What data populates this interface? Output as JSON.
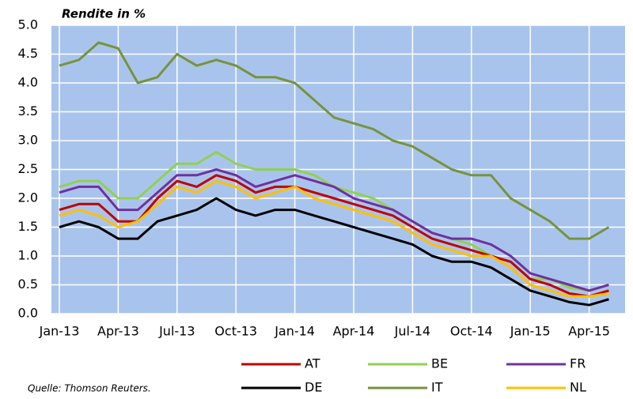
{
  "chart_data": {
    "type": "line",
    "y_label": "Rendite in %",
    "source": "Quelle: Thomson Reuters.",
    "categories": [
      "Jan-13",
      null,
      null,
      "Apr-13",
      null,
      null,
      "Jul-13",
      null,
      null,
      "Oct-13",
      null,
      null,
      "Jan-14",
      null,
      null,
      "Apr-14",
      null,
      null,
      "Jul-14",
      null,
      null,
      "Oct-14",
      null,
      null,
      "Jan-15",
      null,
      null,
      "Apr-15",
      null
    ],
    "series": [
      {
        "name": "AT",
        "color": "#c00000",
        "values": [
          1.8,
          1.9,
          1.9,
          1.6,
          1.6,
          2.0,
          2.3,
          2.2,
          2.4,
          2.3,
          2.1,
          2.2,
          2.2,
          2.1,
          2.0,
          1.9,
          1.8,
          1.7,
          1.5,
          1.3,
          1.2,
          1.1,
          1.0,
          0.9,
          0.6,
          0.5,
          0.35,
          0.3,
          0.4
        ]
      },
      {
        "name": "BE",
        "color": "#92d050",
        "values": [
          2.2,
          2.3,
          2.3,
          2.0,
          2.0,
          2.3,
          2.6,
          2.6,
          2.8,
          2.6,
          2.5,
          2.5,
          2.5,
          2.4,
          2.2,
          2.1,
          2.0,
          1.8,
          1.6,
          1.4,
          1.3,
          1.2,
          1.0,
          0.9,
          0.6,
          0.6,
          0.45,
          0.4,
          0.5
        ]
      },
      {
        "name": "FR",
        "color": "#7030a0",
        "values": [
          2.1,
          2.2,
          2.2,
          1.8,
          1.8,
          2.1,
          2.4,
          2.4,
          2.5,
          2.4,
          2.2,
          2.3,
          2.4,
          2.3,
          2.2,
          2.0,
          1.9,
          1.8,
          1.6,
          1.4,
          1.3,
          1.3,
          1.2,
          1.0,
          0.7,
          0.6,
          0.5,
          0.4,
          0.5
        ]
      },
      {
        "name": "DE",
        "color": "#000000",
        "values": [
          1.5,
          1.6,
          1.5,
          1.3,
          1.3,
          1.6,
          1.7,
          1.8,
          2.0,
          1.8,
          1.7,
          1.8,
          1.8,
          1.7,
          1.6,
          1.5,
          1.4,
          1.3,
          1.2,
          1.0,
          0.9,
          0.9,
          0.8,
          0.6,
          0.4,
          0.3,
          0.2,
          0.15,
          0.25
        ]
      },
      {
        "name": "IT",
        "color": "#77933c",
        "values": [
          4.3,
          4.4,
          4.7,
          4.6,
          4.0,
          4.1,
          4.5,
          4.3,
          4.4,
          4.3,
          4.1,
          4.1,
          4.0,
          3.7,
          3.4,
          3.3,
          3.2,
          3.0,
          2.9,
          2.7,
          2.5,
          2.4,
          2.4,
          2.0,
          1.8,
          1.6,
          1.3,
          1.3,
          1.5
        ]
      },
      {
        "name": "NL",
        "color": "#ffc000",
        "values": [
          1.7,
          1.8,
          1.7,
          1.5,
          1.6,
          1.9,
          2.2,
          2.1,
          2.3,
          2.2,
          2.0,
          2.1,
          2.2,
          2.0,
          1.9,
          1.8,
          1.7,
          1.6,
          1.4,
          1.2,
          1.1,
          1.0,
          1.0,
          0.8,
          0.5,
          0.4,
          0.3,
          0.3,
          0.35
        ]
      }
    ],
    "ylim": [
      0,
      5
    ],
    "yticks": [
      {
        "value": 0,
        "label": "0.0"
      },
      {
        "value": 0.5,
        "label": "0.5"
      },
      {
        "value": 1,
        "label": "1.0"
      },
      {
        "value": 1.5,
        "label": "1.5"
      },
      {
        "value": 2,
        "label": "2.0"
      },
      {
        "value": 2.5,
        "label": "2.5"
      },
      {
        "value": 3,
        "label": "3.0"
      },
      {
        "value": 3.5,
        "label": "3.5"
      },
      {
        "value": 4,
        "label": "4.0"
      },
      {
        "value": 4.5,
        "label": "4.5"
      },
      {
        "value": 5,
        "label": "5.0"
      }
    ],
    "grid": true,
    "background": "#a9c4ec"
  }
}
